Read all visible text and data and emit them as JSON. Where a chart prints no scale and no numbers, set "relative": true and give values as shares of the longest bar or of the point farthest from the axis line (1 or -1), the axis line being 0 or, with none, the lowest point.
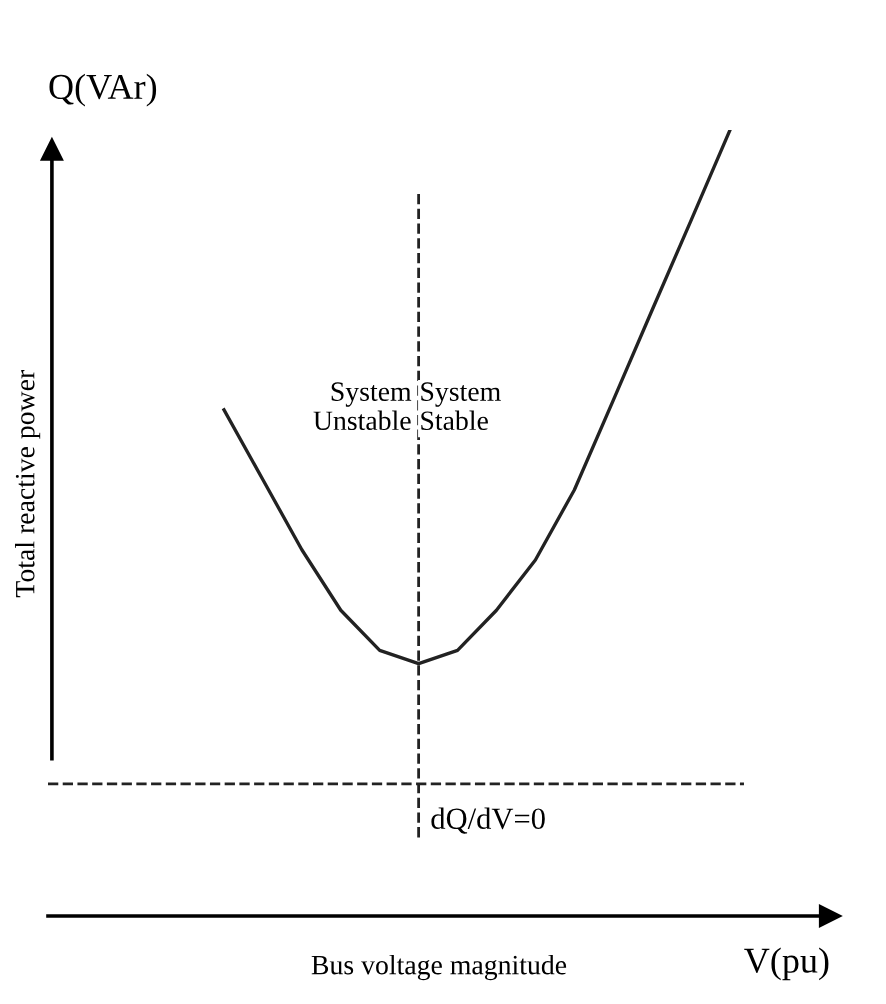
{
  "chart_data": {
    "type": "line",
    "relative": true,
    "line_style": "solid",
    "xlabel": "Bus voltage magnitude",
    "categories": [
      null,
      null,
      null,
      null,
      null,
      null,
      null,
      null,
      null,
      null,
      null,
      null,
      null,
      null
    ],
    "series": [
      {
        "color": "#222222",
        "values": [
          0.644,
          0.555,
          0.466,
          0.389,
          0.338,
          0.321,
          0.338,
          0.389,
          0.453,
          0.542,
          0.656,
          0.771,
          0.885,
          1.0
        ]
      }
    ],
    "ref_lines": [
      {
        "axis": "y",
        "value": 0.168,
        "label": "dQ/dV=0",
        "line_style": "dashed",
        "color": "#222222"
      }
    ],
    "annotations": [
      "Q(VAr)",
      "V(pu)",
      "System\nUnstable",
      "System\nStable",
      "Total reactive power"
    ]
  }
}
